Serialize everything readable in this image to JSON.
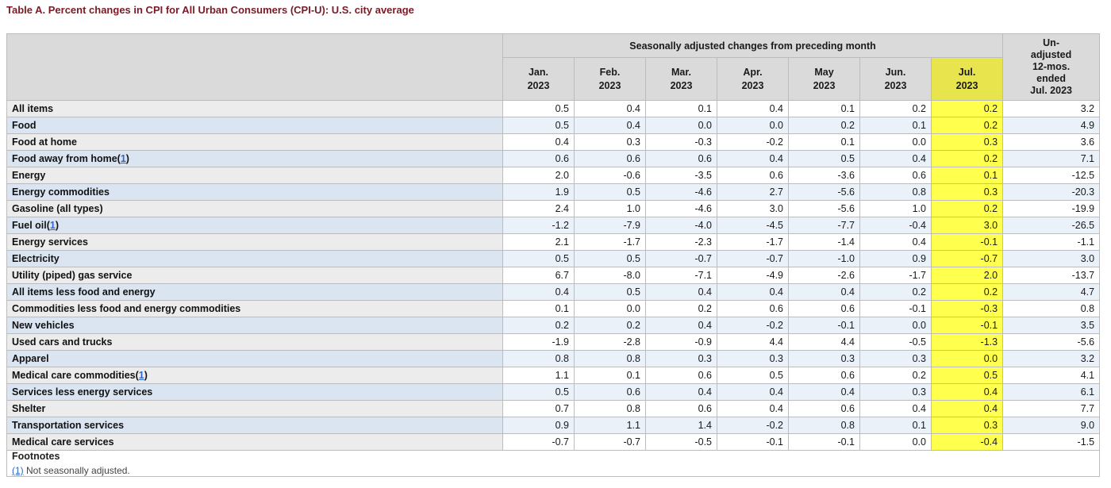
{
  "page_title": "Table A. Percent changes in CPI for All Urban Consumers (CPI-U): U.S. city average",
  "chart_data": {
    "type": "table",
    "title": "Table A. Percent changes in CPI for All Urban Consumers (CPI-U): U.S. city average",
    "spanner": "Seasonally adjusted changes from preceding month",
    "unadjusted_header_lines": [
      "Un-",
      "adjusted",
      "12-mos.",
      "ended",
      "Jul. 2023"
    ],
    "highlighted_column": "Jul. 2023",
    "months": [
      {
        "abbr": "Jan.",
        "year": "2023",
        "highlight": false
      },
      {
        "abbr": "Feb.",
        "year": "2023",
        "highlight": false
      },
      {
        "abbr": "Mar.",
        "year": "2023",
        "highlight": false
      },
      {
        "abbr": "Apr.",
        "year": "2023",
        "highlight": false
      },
      {
        "abbr": "May",
        "year": "2023",
        "highlight": false
      },
      {
        "abbr": "Jun.",
        "year": "2023",
        "highlight": false
      },
      {
        "abbr": "Jul.",
        "year": "2023",
        "highlight": true
      }
    ],
    "rows": [
      {
        "label": "All items",
        "indent": 0,
        "footnote": null,
        "values": [
          "0.5",
          "0.4",
          "0.1",
          "0.4",
          "0.1",
          "0.2",
          "0.2"
        ],
        "unadjusted": "3.2"
      },
      {
        "label": "Food",
        "indent": 1,
        "footnote": null,
        "values": [
          "0.5",
          "0.4",
          "0.0",
          "0.0",
          "0.2",
          "0.1",
          "0.2"
        ],
        "unadjusted": "4.9"
      },
      {
        "label": "Food at home",
        "indent": 2,
        "footnote": null,
        "values": [
          "0.4",
          "0.3",
          "-0.3",
          "-0.2",
          "0.1",
          "0.0",
          "0.3"
        ],
        "unadjusted": "3.6"
      },
      {
        "label": "Food away from home",
        "indent": 2,
        "footnote": "1",
        "values": [
          "0.6",
          "0.6",
          "0.6",
          "0.4",
          "0.5",
          "0.4",
          "0.2"
        ],
        "unadjusted": "7.1"
      },
      {
        "label": "Energy",
        "indent": 1,
        "footnote": null,
        "values": [
          "2.0",
          "-0.6",
          "-3.5",
          "0.6",
          "-3.6",
          "0.6",
          "0.1"
        ],
        "unadjusted": "-12.5"
      },
      {
        "label": "Energy commodities",
        "indent": 2,
        "footnote": null,
        "values": [
          "1.9",
          "0.5",
          "-4.6",
          "2.7",
          "-5.6",
          "0.8",
          "0.3"
        ],
        "unadjusted": "-20.3"
      },
      {
        "label": "Gasoline (all types)",
        "indent": 3,
        "footnote": null,
        "values": [
          "2.4",
          "1.0",
          "-4.6",
          "3.0",
          "-5.6",
          "1.0",
          "0.2"
        ],
        "unadjusted": "-19.9"
      },
      {
        "label": "Fuel oil",
        "indent": 3,
        "footnote": "1",
        "values": [
          "-1.2",
          "-7.9",
          "-4.0",
          "-4.5",
          "-7.7",
          "-0.4",
          "3.0"
        ],
        "unadjusted": "-26.5"
      },
      {
        "label": "Energy services",
        "indent": 2,
        "footnote": null,
        "values": [
          "2.1",
          "-1.7",
          "-2.3",
          "-1.7",
          "-1.4",
          "0.4",
          "-0.1"
        ],
        "unadjusted": "-1.1"
      },
      {
        "label": "Electricity",
        "indent": 3,
        "footnote": null,
        "values": [
          "0.5",
          "0.5",
          "-0.7",
          "-0.7",
          "-1.0",
          "0.9",
          "-0.7"
        ],
        "unadjusted": "3.0"
      },
      {
        "label": "Utility (piped) gas service",
        "indent": 3,
        "footnote": null,
        "values": [
          "6.7",
          "-8.0",
          "-7.1",
          "-4.9",
          "-2.6",
          "-1.7",
          "2.0"
        ],
        "unadjusted": "-13.7"
      },
      {
        "label": "All items less food and energy",
        "indent": 1,
        "footnote": null,
        "values": [
          "0.4",
          "0.5",
          "0.4",
          "0.4",
          "0.4",
          "0.2",
          "0.2"
        ],
        "unadjusted": "4.7"
      },
      {
        "label": "Commodities less food and energy commodities",
        "indent": 2,
        "footnote": null,
        "values": [
          "0.1",
          "0.0",
          "0.2",
          "0.6",
          "0.6",
          "-0.1",
          "-0.3"
        ],
        "unadjusted": "0.8"
      },
      {
        "label": "New vehicles",
        "indent": 3,
        "footnote": null,
        "values": [
          "0.2",
          "0.2",
          "0.4",
          "-0.2",
          "-0.1",
          "0.0",
          "-0.1"
        ],
        "unadjusted": "3.5"
      },
      {
        "label": "Used cars and trucks",
        "indent": 3,
        "footnote": null,
        "values": [
          "-1.9",
          "-2.8",
          "-0.9",
          "4.4",
          "4.4",
          "-0.5",
          "-1.3"
        ],
        "unadjusted": "-5.6"
      },
      {
        "label": "Apparel",
        "indent": 3,
        "footnote": null,
        "values": [
          "0.8",
          "0.8",
          "0.3",
          "0.3",
          "0.3",
          "0.3",
          "0.0"
        ],
        "unadjusted": "3.2"
      },
      {
        "label": "Medical care commodities",
        "indent": 3,
        "footnote": "1",
        "values": [
          "1.1",
          "0.1",
          "0.6",
          "0.5",
          "0.6",
          "0.2",
          "0.5"
        ],
        "unadjusted": "4.1"
      },
      {
        "label": "Services less energy services",
        "indent": 2,
        "footnote": null,
        "values": [
          "0.5",
          "0.6",
          "0.4",
          "0.4",
          "0.4",
          "0.3",
          "0.4"
        ],
        "unadjusted": "6.1"
      },
      {
        "label": "Shelter",
        "indent": 3,
        "footnote": null,
        "values": [
          "0.7",
          "0.8",
          "0.6",
          "0.4",
          "0.6",
          "0.4",
          "0.4"
        ],
        "unadjusted": "7.7"
      },
      {
        "label": "Transportation services",
        "indent": 3,
        "footnote": null,
        "values": [
          "0.9",
          "1.1",
          "1.4",
          "-0.2",
          "0.8",
          "0.1",
          "0.3"
        ],
        "unadjusted": "9.0"
      },
      {
        "label": "Medical care services",
        "indent": 3,
        "footnote": null,
        "values": [
          "-0.7",
          "-0.7",
          "-0.5",
          "-0.1",
          "-0.1",
          "0.0",
          "-0.4"
        ],
        "unadjusted": "-1.5"
      }
    ]
  },
  "footnotes": {
    "heading": "Footnotes",
    "items": [
      {
        "marker": "(1)",
        "text": "Not seasonally adjusted."
      }
    ]
  },
  "colors": {
    "title_maroon": "#7b1a26",
    "header_gray": "#dadada",
    "highlight_cell_yellow": "#ffff4d",
    "highlight_header_yellow": "#e7e44e",
    "row_blue": "#eaf1f9",
    "stub_blue": "#dbe5f1",
    "stub_gray": "#ececec",
    "link_blue": "#3366cc"
  }
}
